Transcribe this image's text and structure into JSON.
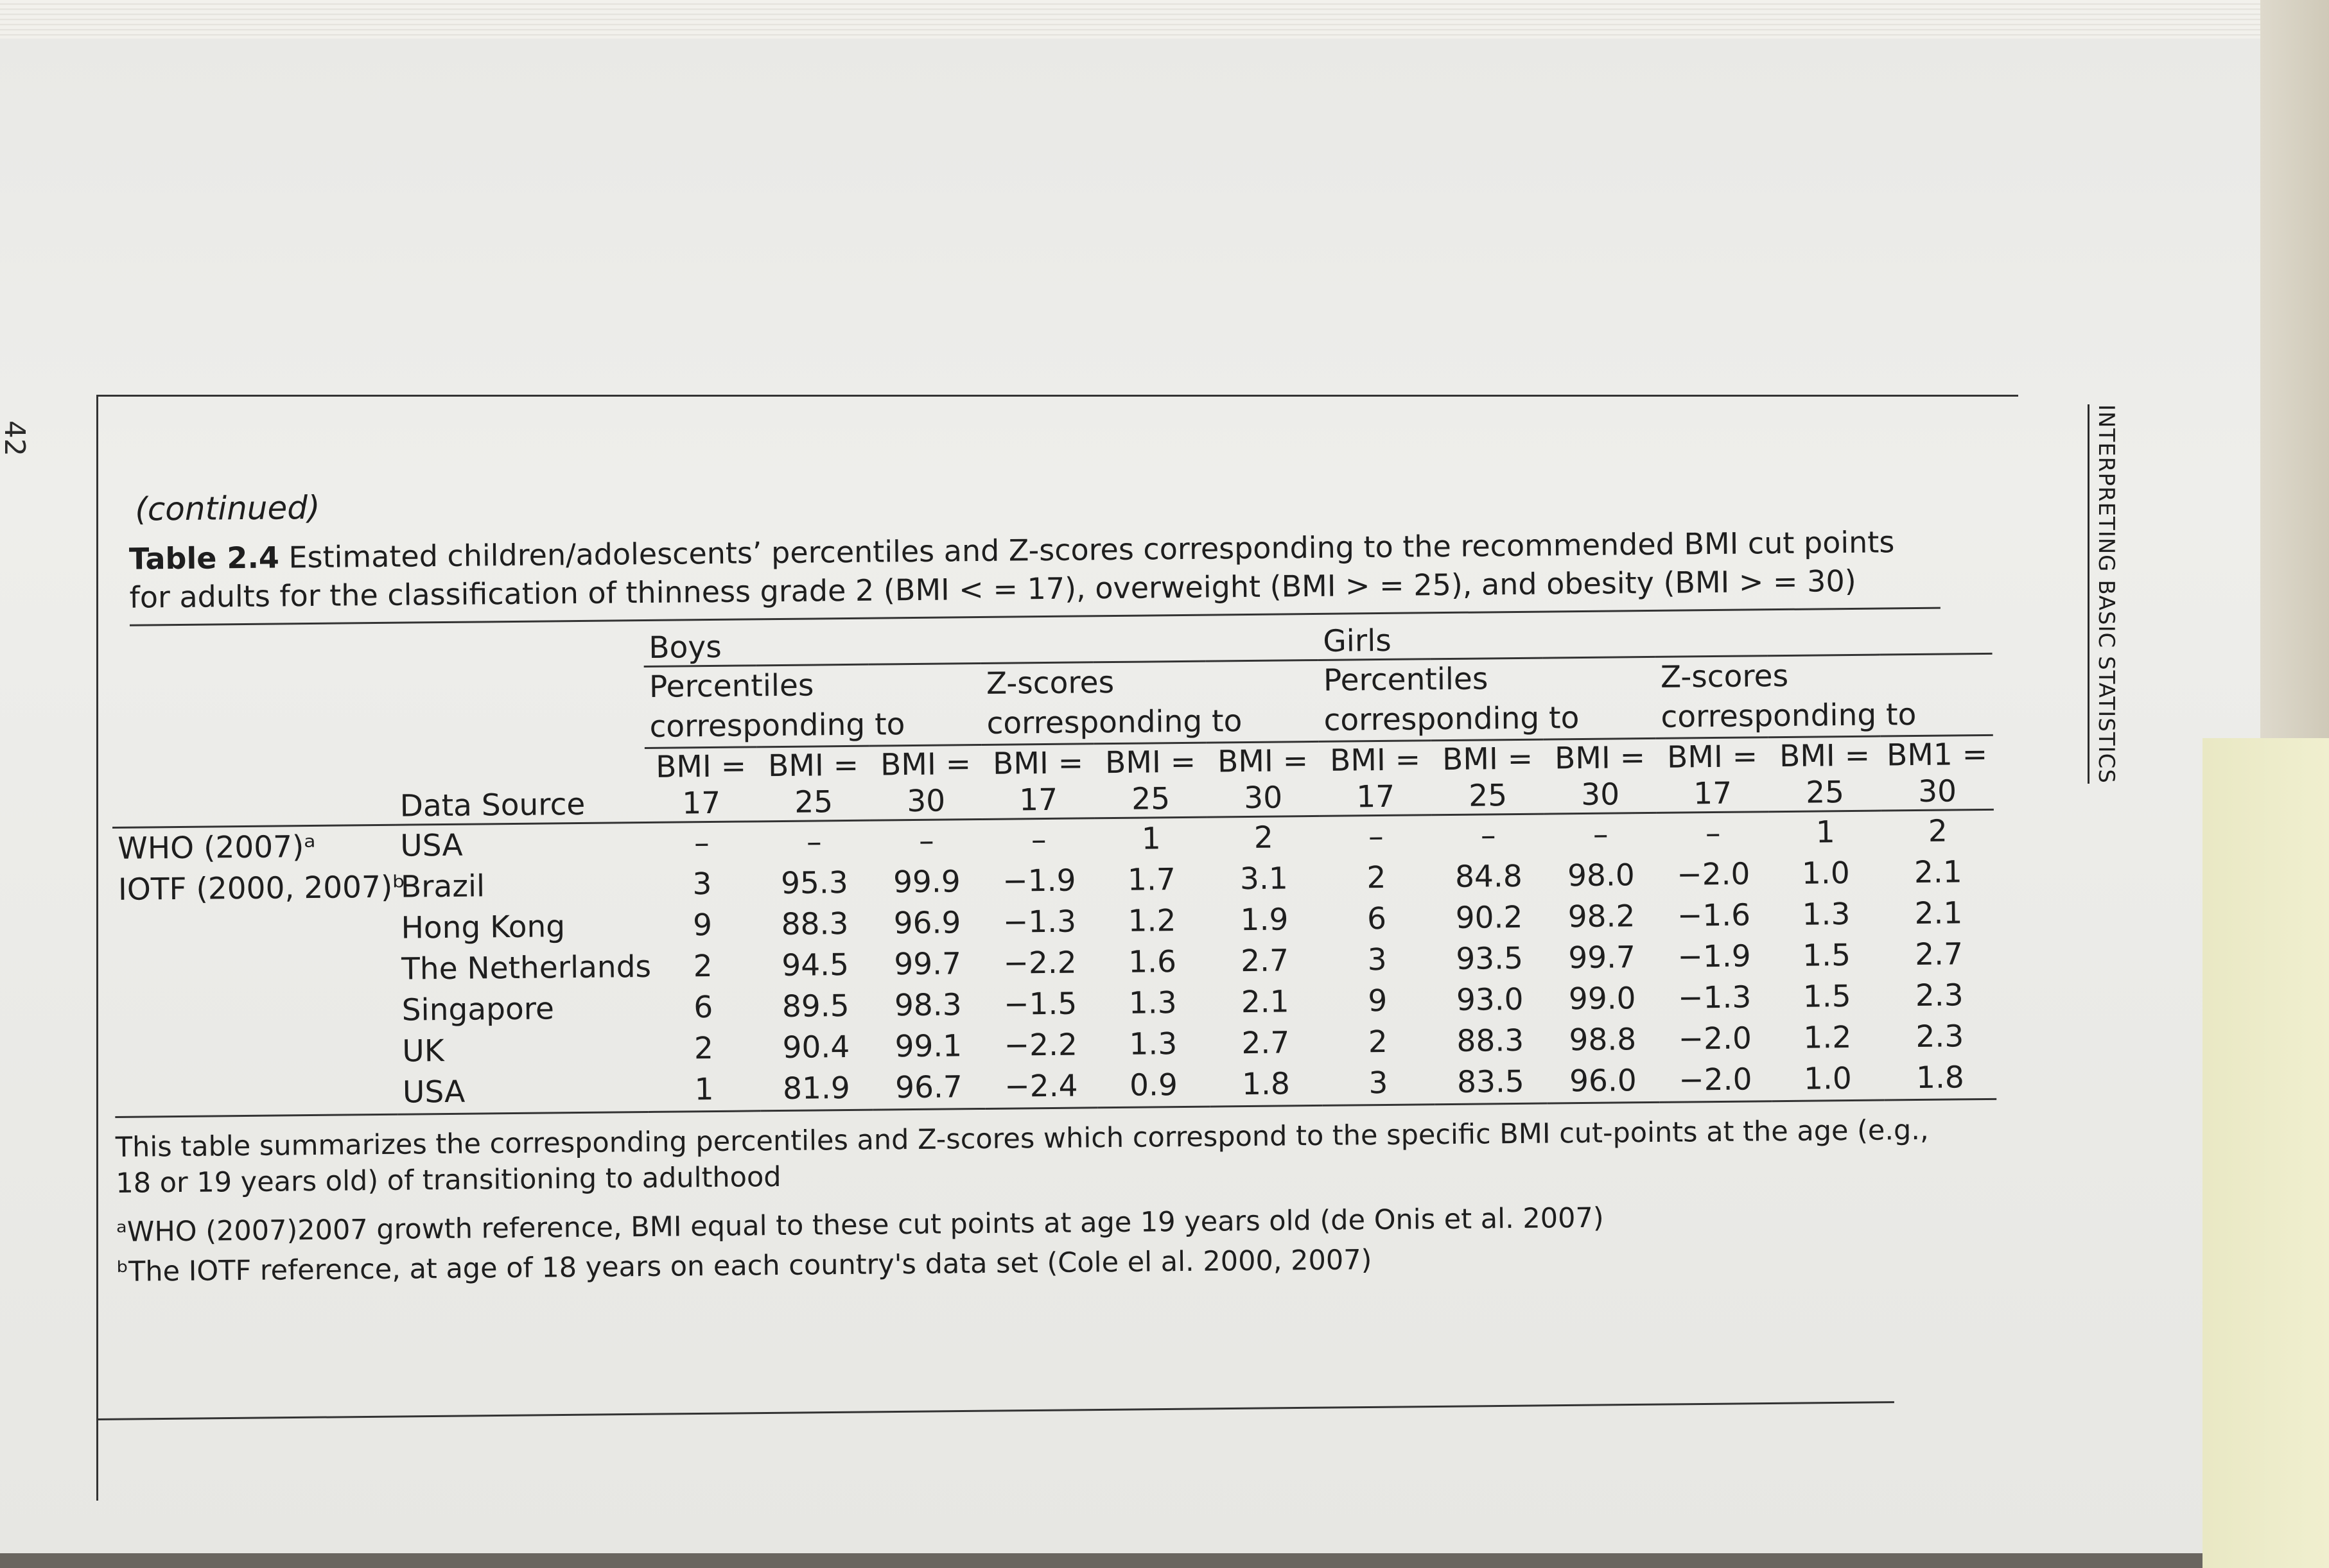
{
  "page_number": "42",
  "running_head": "INTERPRETING BASIC STATISTICS",
  "continued": "(continued)",
  "caption": {
    "tag": "Table 2.4",
    "text": "Estimated children/adolescents’ percentiles and Z-scores corresponding to the recommended BMI cut points for adults for the classification of thinness grade 2 (BMI < = 17), overweight (BMI > = 25), and obesity (BMI > = 30)"
  },
  "headers": {
    "boys": "Boys",
    "girls": "Girls",
    "boys_percentiles": [
      "Percentiles",
      "corresponding to"
    ],
    "boys_zscores": [
      "Z-scores",
      "corresponding to"
    ],
    "girls_percentiles": [
      "Percentiles",
      "corresponding to"
    ],
    "girls_zscores": [
      "Z-scores",
      "corresponding to"
    ],
    "data_source": "Data Source",
    "cut_top": [
      "BMI =",
      "BMI =",
      "BMI =",
      "BMI =",
      "BMI =",
      "BMI =",
      "BMI =",
      "BMI =",
      "BMI =",
      "BMI =",
      "BMI =",
      "BM1 ="
    ],
    "cut_bottom": [
      "17",
      "25",
      "30",
      "17",
      "25",
      "30",
      "17",
      "25",
      "30",
      "17",
      "25",
      "30"
    ]
  },
  "rows": [
    {
      "ref": "WHO (2007)ᵃ",
      "source": "USA",
      "values": [
        "–",
        "–",
        "–",
        "–",
        "1",
        "2",
        "–",
        "–",
        "–",
        "–",
        "1",
        "2"
      ]
    },
    {
      "ref": "IOTF (2000, 2007)ᵇ",
      "source": "Brazil",
      "values": [
        "3",
        "95.3",
        "99.9",
        "−1.9",
        "1.7",
        "3.1",
        "2",
        "84.8",
        "98.0",
        "−2.0",
        "1.0",
        "2.1"
      ]
    },
    {
      "ref": "",
      "source": "Hong Kong",
      "values": [
        "9",
        "88.3",
        "96.9",
        "−1.3",
        "1.2",
        "1.9",
        "6",
        "90.2",
        "98.2",
        "−1.6",
        "1.3",
        "2.1"
      ]
    },
    {
      "ref": "",
      "source": "The Netherlands",
      "values": [
        "2",
        "94.5",
        "99.7",
        "−2.2",
        "1.6",
        "2.7",
        "3",
        "93.5",
        "99.7",
        "−1.9",
        "1.5",
        "2.7"
      ]
    },
    {
      "ref": "",
      "source": "Singapore",
      "values": [
        "6",
        "89.5",
        "98.3",
        "−1.5",
        "1.3",
        "2.1",
        "9",
        "93.0",
        "99.0",
        "−1.3",
        "1.5",
        "2.3"
      ]
    },
    {
      "ref": "",
      "source": "UK",
      "values": [
        "2",
        "90.4",
        "99.1",
        "−2.2",
        "1.3",
        "2.7",
        "2",
        "88.3",
        "98.8",
        "−2.0",
        "1.2",
        "2.3"
      ]
    },
    {
      "ref": "",
      "source": "USA",
      "values": [
        "1",
        "81.9",
        "96.7",
        "−2.4",
        "0.9",
        "1.8",
        "3",
        "83.5",
        "96.0",
        "−2.0",
        "1.0",
        "1.8"
      ]
    }
  ],
  "notes": {
    "summary": "This table summarizes the corresponding percentiles and Z-scores which correspond to the specific BMI cut-points at the age (e.g., 18 or 19 years old) of transitioning to adulthood",
    "footnote_a": "ᵃWHO (2007)2007 growth reference, BMI equal to these cut points at age 19 years old (de Onis et al. 2007)",
    "footnote_b": "ᵇThe IOTF reference, at age of 18 years on each country's data set (Cole el al. 2000, 2007)"
  }
}
